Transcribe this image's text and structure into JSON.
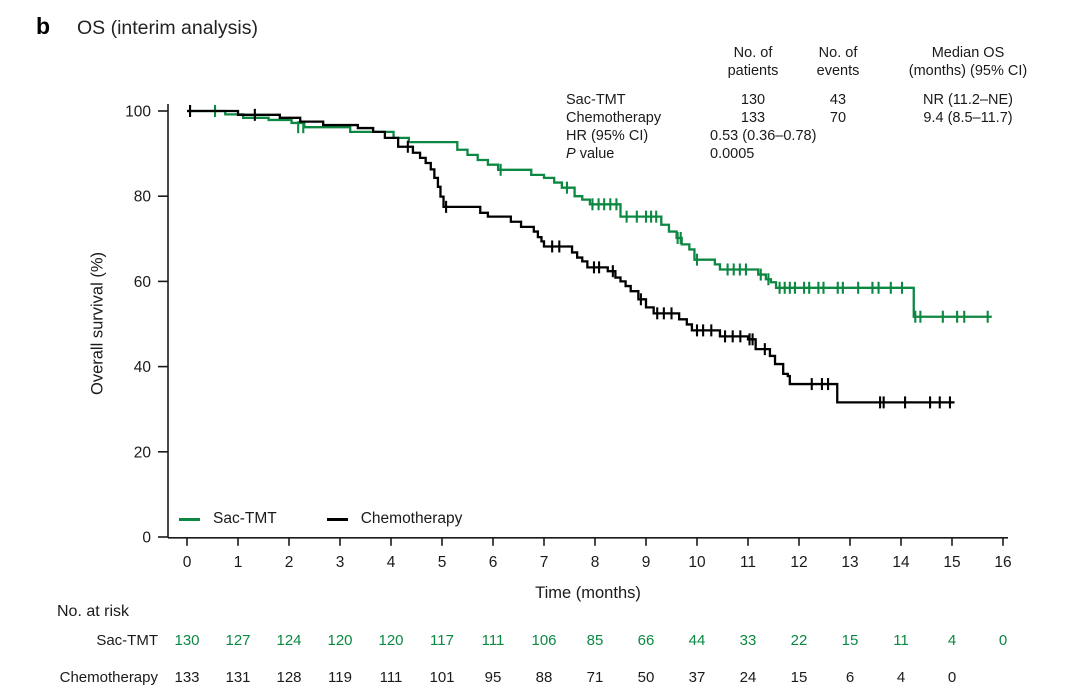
{
  "panel": {
    "label": "b",
    "title": "OS (interim analysis)"
  },
  "stats": {
    "col_headers": {
      "patients": "No. of\npatients",
      "events": "No. of\nevents",
      "median": "Median OS\n(months) (95% CI)"
    },
    "rows": [
      {
        "label": "Sac-TMT",
        "patients": "130",
        "events": "43",
        "median": "NR (11.2–NE)"
      },
      {
        "label": "Chemotherapy",
        "patients": "133",
        "events": "70",
        "median": "9.4 (8.5–11.7)"
      }
    ],
    "hr": {
      "label": "HR (95% CI)",
      "value": "0.53 (0.36–0.78)"
    },
    "p": {
      "label_italic": "P",
      "label_rest": " value",
      "value": "0.0005"
    }
  },
  "legend": {
    "items": [
      {
        "label": "Sac-TMT",
        "color": "#0c8843"
      },
      {
        "label": "Chemotherapy",
        "color": "#000000"
      }
    ]
  },
  "axes": {
    "xlabel": "Time (months)",
    "ylabel": "Overall survival (%)"
  },
  "chart_data": {
    "type": "line",
    "subtype": "kaplan-meier-step",
    "title": "OS (interim analysis)",
    "xlabel": "Time (months)",
    "ylabel": "Overall survival (%)",
    "xlim": [
      0,
      16
    ],
    "ylim": [
      0,
      100
    ],
    "xticks": [
      0,
      1,
      2,
      3,
      4,
      5,
      6,
      7,
      8,
      9,
      10,
      11,
      12,
      13,
      14,
      15,
      16
    ],
    "yticks": [
      0,
      20,
      40,
      60,
      80,
      100
    ],
    "grid": false,
    "legend_position": "inside-bottom-left",
    "annotations": {
      "hr": "HR (95% CI) 0.53 (0.36–0.78)",
      "p_value": "0.0005",
      "median_os": {
        "Sac-TMT": "NR (11.2–NE)",
        "Chemotherapy": "9.4 (8.5–11.7)"
      },
      "n_patients": {
        "Sac-TMT": 130,
        "Chemotherapy": 133
      },
      "n_events": {
        "Sac-TMT": 43,
        "Chemotherapy": 70
      }
    },
    "series": [
      {
        "name": "Sac-TMT",
        "color": "#0c8843",
        "end": 15.78,
        "steps": [
          [
            0,
            100
          ],
          [
            0.75,
            99.2
          ],
          [
            1.1,
            98.4
          ],
          [
            1.6,
            97.9
          ],
          [
            2.05,
            97.2
          ],
          [
            2.3,
            96.2
          ],
          [
            3.2,
            95.1
          ],
          [
            4.05,
            93.7
          ],
          [
            4.35,
            92.7
          ],
          [
            5.3,
            90.9
          ],
          [
            5.5,
            89.7
          ],
          [
            5.7,
            88.5
          ],
          [
            5.9,
            87.4
          ],
          [
            6.1,
            86.2
          ],
          [
            6.75,
            85.0
          ],
          [
            7.0,
            84.3
          ],
          [
            7.2,
            83.2
          ],
          [
            7.35,
            82.0
          ],
          [
            7.6,
            80.0
          ],
          [
            7.75,
            79.2
          ],
          [
            7.9,
            78.1
          ],
          [
            8.5,
            75.2
          ],
          [
            9.3,
            73.3
          ],
          [
            9.45,
            71.7
          ],
          [
            9.6,
            70.2
          ],
          [
            9.7,
            68.7
          ],
          [
            9.85,
            67.5
          ],
          [
            9.95,
            65.1
          ],
          [
            10.35,
            64.0
          ],
          [
            10.45,
            62.8
          ],
          [
            11.2,
            61.6
          ],
          [
            11.35,
            60.5
          ],
          [
            11.45,
            59.8
          ],
          [
            11.55,
            58.5
          ],
          [
            14.25,
            51.7
          ]
        ],
        "censors": [
          [
            0.55,
            100
          ],
          [
            2.18,
            96.2
          ],
          [
            2.28,
            96.2
          ],
          [
            6.15,
            86.2
          ],
          [
            7.45,
            82.0
          ],
          [
            7.95,
            78.1
          ],
          [
            8.07,
            78.1
          ],
          [
            8.18,
            78.1
          ],
          [
            8.3,
            78.1
          ],
          [
            8.42,
            78.1
          ],
          [
            8.62,
            75.2
          ],
          [
            8.82,
            75.2
          ],
          [
            9.0,
            75.2
          ],
          [
            9.1,
            75.2
          ],
          [
            9.2,
            75.2
          ],
          [
            9.62,
            70.2
          ],
          [
            9.68,
            70.2
          ],
          [
            10.0,
            65.1
          ],
          [
            10.6,
            62.8
          ],
          [
            10.72,
            62.8
          ],
          [
            10.84,
            62.8
          ],
          [
            10.96,
            62.8
          ],
          [
            11.25,
            61.6
          ],
          [
            11.4,
            60.5
          ],
          [
            11.62,
            58.5
          ],
          [
            11.72,
            58.5
          ],
          [
            11.82,
            58.5
          ],
          [
            11.92,
            58.5
          ],
          [
            12.1,
            58.5
          ],
          [
            12.2,
            58.5
          ],
          [
            12.38,
            58.5
          ],
          [
            12.48,
            58.5
          ],
          [
            12.76,
            58.5
          ],
          [
            12.86,
            58.5
          ],
          [
            13.16,
            58.5
          ],
          [
            13.44,
            58.5
          ],
          [
            13.56,
            58.5
          ],
          [
            13.8,
            58.5
          ],
          [
            14.02,
            58.5
          ],
          [
            14.28,
            51.7
          ],
          [
            14.38,
            51.7
          ],
          [
            14.82,
            51.7
          ],
          [
            15.1,
            51.7
          ],
          [
            15.24,
            51.7
          ],
          [
            15.7,
            51.7
          ]
        ]
      },
      {
        "name": "Chemotherapy",
        "color": "#000000",
        "end": 15.05,
        "steps": [
          [
            0,
            100
          ],
          [
            1.0,
            99.1
          ],
          [
            1.82,
            98.4
          ],
          [
            2.22,
            97.5
          ],
          [
            2.67,
            96.7
          ],
          [
            3.35,
            96.0
          ],
          [
            3.65,
            95.1
          ],
          [
            3.88,
            93.7
          ],
          [
            4.14,
            91.6
          ],
          [
            4.43,
            90.2
          ],
          [
            4.57,
            89.0
          ],
          [
            4.68,
            87.8
          ],
          [
            4.78,
            86.3
          ],
          [
            4.85,
            84.3
          ],
          [
            4.92,
            82.2
          ],
          [
            4.97,
            79.9
          ],
          [
            5.03,
            77.5
          ],
          [
            5.75,
            76.1
          ],
          [
            5.9,
            75.2
          ],
          [
            6.35,
            74.0
          ],
          [
            6.55,
            72.8
          ],
          [
            6.8,
            71.7
          ],
          [
            6.88,
            70.4
          ],
          [
            6.95,
            69.4
          ],
          [
            7.0,
            68.2
          ],
          [
            7.55,
            66.8
          ],
          [
            7.65,
            65.6
          ],
          [
            7.75,
            64.7
          ],
          [
            7.85,
            63.3
          ],
          [
            8.25,
            62.4
          ],
          [
            8.4,
            60.9
          ],
          [
            8.5,
            60.0
          ],
          [
            8.6,
            58.9
          ],
          [
            8.7,
            57.7
          ],
          [
            8.85,
            55.8
          ],
          [
            9.0,
            53.9
          ],
          [
            9.15,
            52.5
          ],
          [
            9.65,
            51.1
          ],
          [
            9.8,
            49.9
          ],
          [
            9.9,
            48.5
          ],
          [
            10.45,
            47.1
          ],
          [
            11.0,
            46.4
          ],
          [
            11.15,
            44.1
          ],
          [
            11.43,
            42.5
          ],
          [
            11.53,
            40.6
          ],
          [
            11.69,
            38.3
          ],
          [
            11.78,
            37.8
          ],
          [
            11.82,
            35.9
          ],
          [
            12.75,
            31.6
          ]
        ],
        "censors": [
          [
            0.06,
            100
          ],
          [
            1.33,
            99.1
          ],
          [
            4.33,
            91.6
          ],
          [
            5.08,
            77.5
          ],
          [
            7.16,
            68.2
          ],
          [
            7.3,
            68.2
          ],
          [
            7.98,
            63.3
          ],
          [
            8.08,
            63.3
          ],
          [
            8.35,
            62.4
          ],
          [
            8.9,
            55.8
          ],
          [
            9.22,
            52.5
          ],
          [
            9.35,
            52.5
          ],
          [
            9.5,
            52.5
          ],
          [
            10.0,
            48.5
          ],
          [
            10.12,
            48.5
          ],
          [
            10.28,
            48.5
          ],
          [
            10.55,
            47.1
          ],
          [
            10.7,
            47.1
          ],
          [
            10.85,
            47.1
          ],
          [
            11.03,
            46.4
          ],
          [
            11.09,
            46.4
          ],
          [
            11.33,
            44.1
          ],
          [
            12.25,
            35.9
          ],
          [
            12.45,
            35.9
          ],
          [
            12.57,
            35.9
          ],
          [
            13.59,
            31.6
          ],
          [
            13.66,
            31.6
          ],
          [
            14.08,
            31.6
          ],
          [
            14.57,
            31.6
          ],
          [
            14.76,
            31.6
          ],
          [
            14.96,
            31.6
          ]
        ]
      }
    ],
    "risk_table": {
      "label": "No. at risk",
      "time_points": [
        0,
        1,
        2,
        3,
        4,
        5,
        6,
        7,
        8,
        9,
        10,
        11,
        12,
        13,
        14,
        15,
        16
      ],
      "rows": [
        {
          "name": "Sac-TMT",
          "color": "#0c8843",
          "counts": [
            130,
            127,
            124,
            120,
            120,
            117,
            111,
            106,
            85,
            66,
            44,
            33,
            22,
            15,
            11,
            4,
            0
          ]
        },
        {
          "name": "Chemotherapy",
          "color": "#1a1a1a",
          "counts": [
            133,
            131,
            128,
            119,
            111,
            101,
            95,
            88,
            71,
            50,
            37,
            24,
            15,
            6,
            4,
            0
          ]
        }
      ]
    }
  }
}
